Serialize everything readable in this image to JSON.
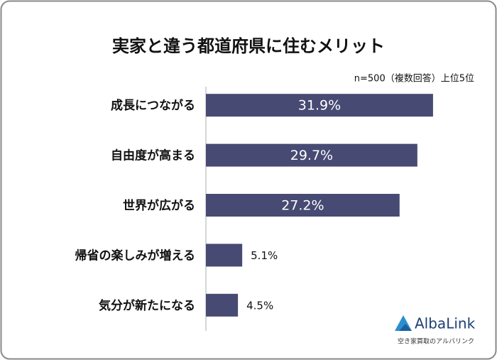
{
  "chart_data": {
    "type": "bar",
    "orientation": "horizontal",
    "title": "実家と違う都道府県に住むメリット",
    "subtitle": "n=500（複数回答）上位5位",
    "categories": [
      "成長につながる",
      "自由度が高まる",
      "世界が広がる",
      "帰省の楽しみが増える",
      "気分が新たになる"
    ],
    "values": [
      31.9,
      29.7,
      27.2,
      5.1,
      4.5
    ],
    "value_labels": [
      "31.9%",
      "29.7%",
      "27.2%",
      "5.1%",
      "4.5%"
    ],
    "color": "#474a72",
    "xlim": [
      0,
      35
    ]
  },
  "logo": {
    "name": "AlbaLink",
    "tagline": "空き家買取のアルバリンク"
  }
}
